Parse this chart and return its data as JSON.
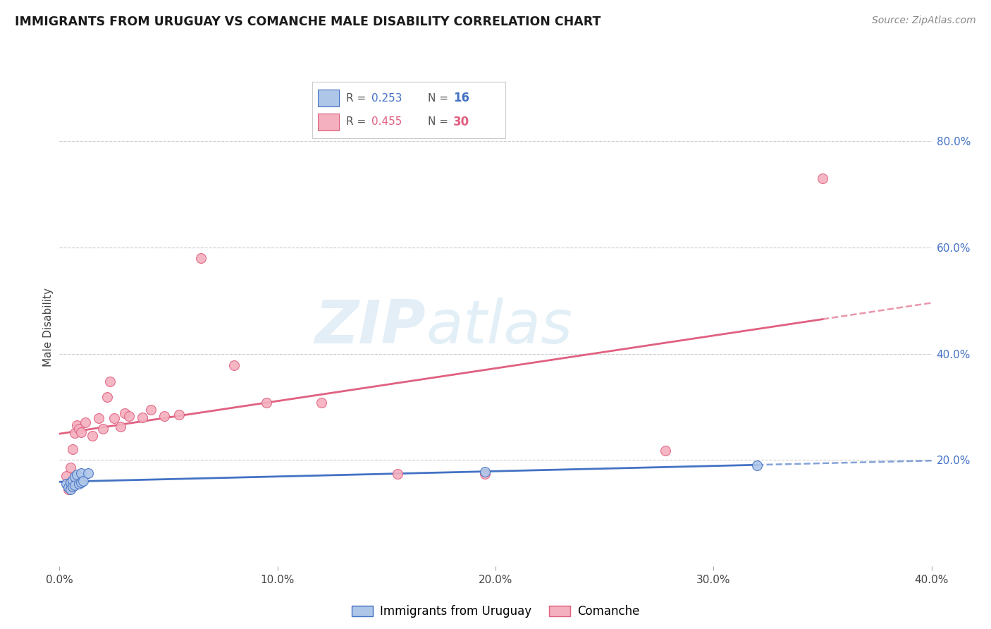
{
  "title": "IMMIGRANTS FROM URUGUAY VS COMANCHE MALE DISABILITY CORRELATION CHART",
  "source": "Source: ZipAtlas.com",
  "ylabel": "Male Disability",
  "xlim": [
    0.0,
    0.4
  ],
  "ylim": [
    0.0,
    0.9
  ],
  "xticks": [
    0.0,
    0.1,
    0.2,
    0.3,
    0.4
  ],
  "xtick_labels": [
    "0.0%",
    "10.0%",
    "20.0%",
    "30.0%",
    "40.0%"
  ],
  "yticks_right": [
    0.2,
    0.4,
    0.6,
    0.8
  ],
  "ytick_labels_right": [
    "20.0%",
    "40.0%",
    "60.0%",
    "80.0%"
  ],
  "uruguay_color": "#aec6e8",
  "comanche_color": "#f4b0be",
  "line_uruguay_color": "#4472C4",
  "line_comanche_color": "#e06080",
  "uruguay_x": [
    0.003,
    0.004,
    0.005,
    0.005,
    0.006,
    0.006,
    0.007,
    0.007,
    0.008,
    0.009,
    0.01,
    0.01,
    0.011,
    0.013,
    0.195,
    0.32
  ],
  "uruguay_y": [
    0.155,
    0.148,
    0.145,
    0.158,
    0.15,
    0.162,
    0.152,
    0.168,
    0.172,
    0.155,
    0.175,
    0.158,
    0.16,
    0.175,
    0.178,
    0.19
  ],
  "comanche_x": [
    0.003,
    0.004,
    0.005,
    0.006,
    0.007,
    0.008,
    0.009,
    0.01,
    0.012,
    0.015,
    0.018,
    0.02,
    0.022,
    0.023,
    0.025,
    0.028,
    0.03,
    0.032,
    0.038,
    0.042,
    0.048,
    0.055,
    0.065,
    0.08,
    0.095,
    0.12,
    0.155,
    0.195,
    0.278,
    0.35
  ],
  "comanche_y": [
    0.17,
    0.145,
    0.185,
    0.22,
    0.25,
    0.265,
    0.258,
    0.252,
    0.27,
    0.245,
    0.278,
    0.258,
    0.318,
    0.348,
    0.278,
    0.262,
    0.288,
    0.282,
    0.28,
    0.295,
    0.282,
    0.285,
    0.58,
    0.378,
    0.308,
    0.308,
    0.173,
    0.173,
    0.218,
    0.73
  ],
  "grid_color": "#cccccc",
  "background_color": "#ffffff",
  "watermark_color": "#d0e8f4"
}
